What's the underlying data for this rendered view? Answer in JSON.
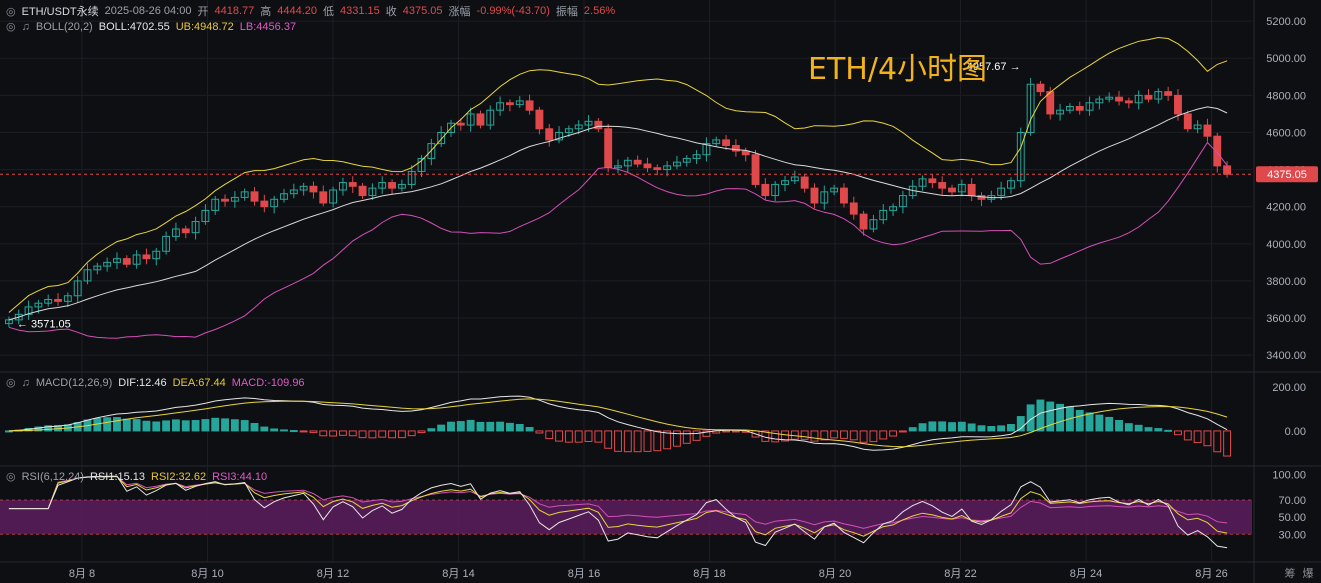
{
  "header": {
    "symbol": "ETH/USDT永续",
    "datetime": "2025-08-26 04:00",
    "open_label": "开",
    "open": "4418.77",
    "high_label": "高",
    "high": "4444.20",
    "low_label": "低",
    "low": "4331.15",
    "close_label": "收",
    "close": "4375.05",
    "change_label": "涨幅",
    "change": "-0.99%(-43.70)",
    "amp_label": "振幅",
    "amp": "2.56%"
  },
  "boll_legend": {
    "name": "BOLL(20,2)",
    "mid": "BOLL:4702.55",
    "ub": "UB:4948.72",
    "lb": "LB:4456.37"
  },
  "macd_legend": {
    "name": "MACD(12,26,9)",
    "dif": "DIF:12.46",
    "dea": "DEA:67.44",
    "macd": "MACD:-109.96"
  },
  "rsi_legend": {
    "name": "RSI(6,12,24)",
    "rsi1": "RSI1:15.13",
    "rsi2": "RSI2:32.62",
    "rsi3": "RSI3:44.10"
  },
  "watermark": "ETH/4小时图",
  "colors": {
    "up": "#26a69a",
    "down": "#e0494b",
    "mid": "#d9d9d9",
    "ub": "#e8d53a",
    "lb": "#d44fb8",
    "rsi_band": "#5a1d5e",
    "bg": "#0e0f13",
    "grid": "#1c1e24"
  },
  "chart_data": [
    {
      "type": "candlestick",
      "title": "ETH/4小时图",
      "ylim": [
        3320,
        5260
      ],
      "yticks": [
        "5200.00",
        "5000.00",
        "4800.00",
        "4600.00",
        "4400.00",
        "4200.00",
        "4000.00",
        "3800.00",
        "3600.00",
        "3400.00"
      ],
      "ytick_values": [
        5200,
        5000,
        4800,
        4600,
        4400,
        4200,
        4000,
        3800,
        3600,
        3400
      ],
      "xticks": [
        "8月 8",
        "8月 10",
        "8月 12",
        "8月 14",
        "8月 16",
        "8月 18",
        "8月 20",
        "8月 22",
        "8月 24",
        "8月 26"
      ],
      "last_price": "4375.05",
      "high_marker": "4957.67",
      "low_marker": "3571.05",
      "close": [
        3590,
        3620,
        3660,
        3680,
        3700,
        3690,
        3720,
        3800,
        3860,
        3880,
        3900,
        3920,
        3890,
        3940,
        3920,
        3960,
        4040,
        4080,
        4060,
        4120,
        4180,
        4240,
        4230,
        4250,
        4280,
        4230,
        4200,
        4240,
        4270,
        4290,
        4310,
        4280,
        4220,
        4290,
        4330,
        4310,
        4260,
        4300,
        4330,
        4300,
        4320,
        4390,
        4460,
        4540,
        4600,
        4650,
        4640,
        4700,
        4640,
        4720,
        4760,
        4750,
        4770,
        4720,
        4620,
        4560,
        4600,
        4620,
        4640,
        4660,
        4620,
        4410,
        4420,
        4450,
        4430,
        4410,
        4400,
        4420,
        4440,
        4460,
        4480,
        4540,
        4560,
        4530,
        4500,
        4480,
        4320,
        4260,
        4320,
        4340,
        4360,
        4300,
        4220,
        4280,
        4300,
        4220,
        4160,
        4080,
        4130,
        4180,
        4200,
        4260,
        4310,
        4350,
        4330,
        4300,
        4280,
        4320,
        4260,
        4240,
        4260,
        4300,
        4340,
        4600,
        4860,
        4820,
        4700,
        4720,
        4740,
        4720,
        4760,
        4780,
        4790,
        4770,
        4760,
        4800,
        4780,
        4820,
        4800,
        4700,
        4620,
        4640,
        4580,
        4420,
        4375
      ],
      "bollinger": {
        "mid_last": 4702.55,
        "ub_last": 4948.72,
        "lb_last": 4456.37
      }
    },
    {
      "type": "bar+line",
      "title": "MACD(12,26,9)",
      "yticks": [
        "200.00",
        "0.00"
      ],
      "ytick_values": [
        200,
        0
      ],
      "ylim": [
        -150,
        240
      ],
      "dif_last": 12.46,
      "dea_last": 67.44,
      "macd_last": -109.96
    },
    {
      "type": "line",
      "title": "RSI(6,12,24)",
      "yticks": [
        "100.00",
        "70.00",
        "50.00",
        "30.00"
      ],
      "ytick_values": [
        100,
        70,
        50,
        30
      ],
      "ylim": [
        0,
        105
      ],
      "band": [
        30,
        70
      ],
      "rsi1_last": 15.13,
      "rsi2_last": 32.62,
      "rsi3_last": 44.1
    }
  ]
}
